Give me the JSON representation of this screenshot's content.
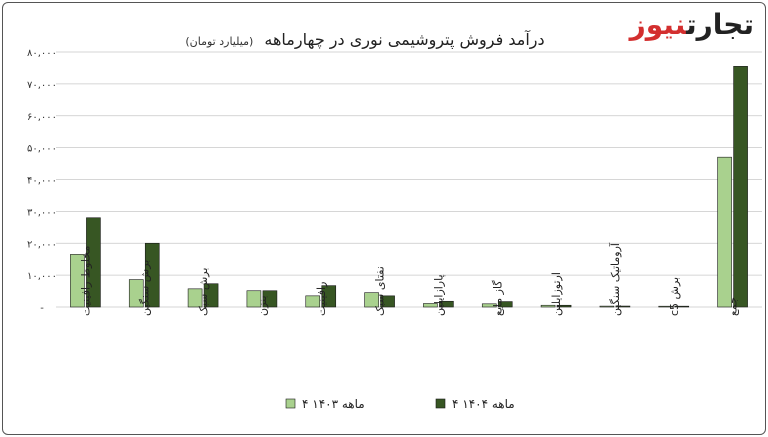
{
  "chart_data": {
    "type": "bar",
    "title": "درآمد فروش پتروشیمی نوری در چهارماهه",
    "subtitle": "(میلیارد تومان)",
    "categories": [
      "مخلوط رافینیت",
      "برش سنگین",
      "برش سبک",
      "بنزن",
      "رافینیت",
      "نفتای سبک",
      "پارازایلین",
      "گاز مایع",
      "ارتوزایلین",
      "آروماتیک سنگین",
      "برش c5",
      "جمع"
    ],
    "series": [
      {
        "name": "۴ ماهه ۱۴۰۳",
        "color": "#a9d18e",
        "values": [
          16500,
          8600,
          5700,
          5100,
          3500,
          4500,
          1100,
          1000,
          550,
          280,
          250,
          47000
        ]
      },
      {
        "name": "۴ ماهه ۱۴۰۴",
        "color": "#375623",
        "values": [
          28000,
          20000,
          7300,
          5100,
          6700,
          3500,
          1800,
          1700,
          550,
          300,
          260,
          75500
        ]
      }
    ],
    "ylim": [
      0,
      80000
    ],
    "yticks": [
      "-",
      "۱۰,۰۰۰",
      "۲۰,۰۰۰",
      "۳۰,۰۰۰",
      "۴۰,۰۰۰",
      "۵۰,۰۰۰",
      "۶۰,۰۰۰",
      "۷۰,۰۰۰",
      "۸۰,۰۰۰"
    ],
    "grid": true,
    "legend": "bottom"
  },
  "brand": {
    "part1": "تجارت",
    "part2": "نیوز",
    "accent": "#d32f2f"
  }
}
